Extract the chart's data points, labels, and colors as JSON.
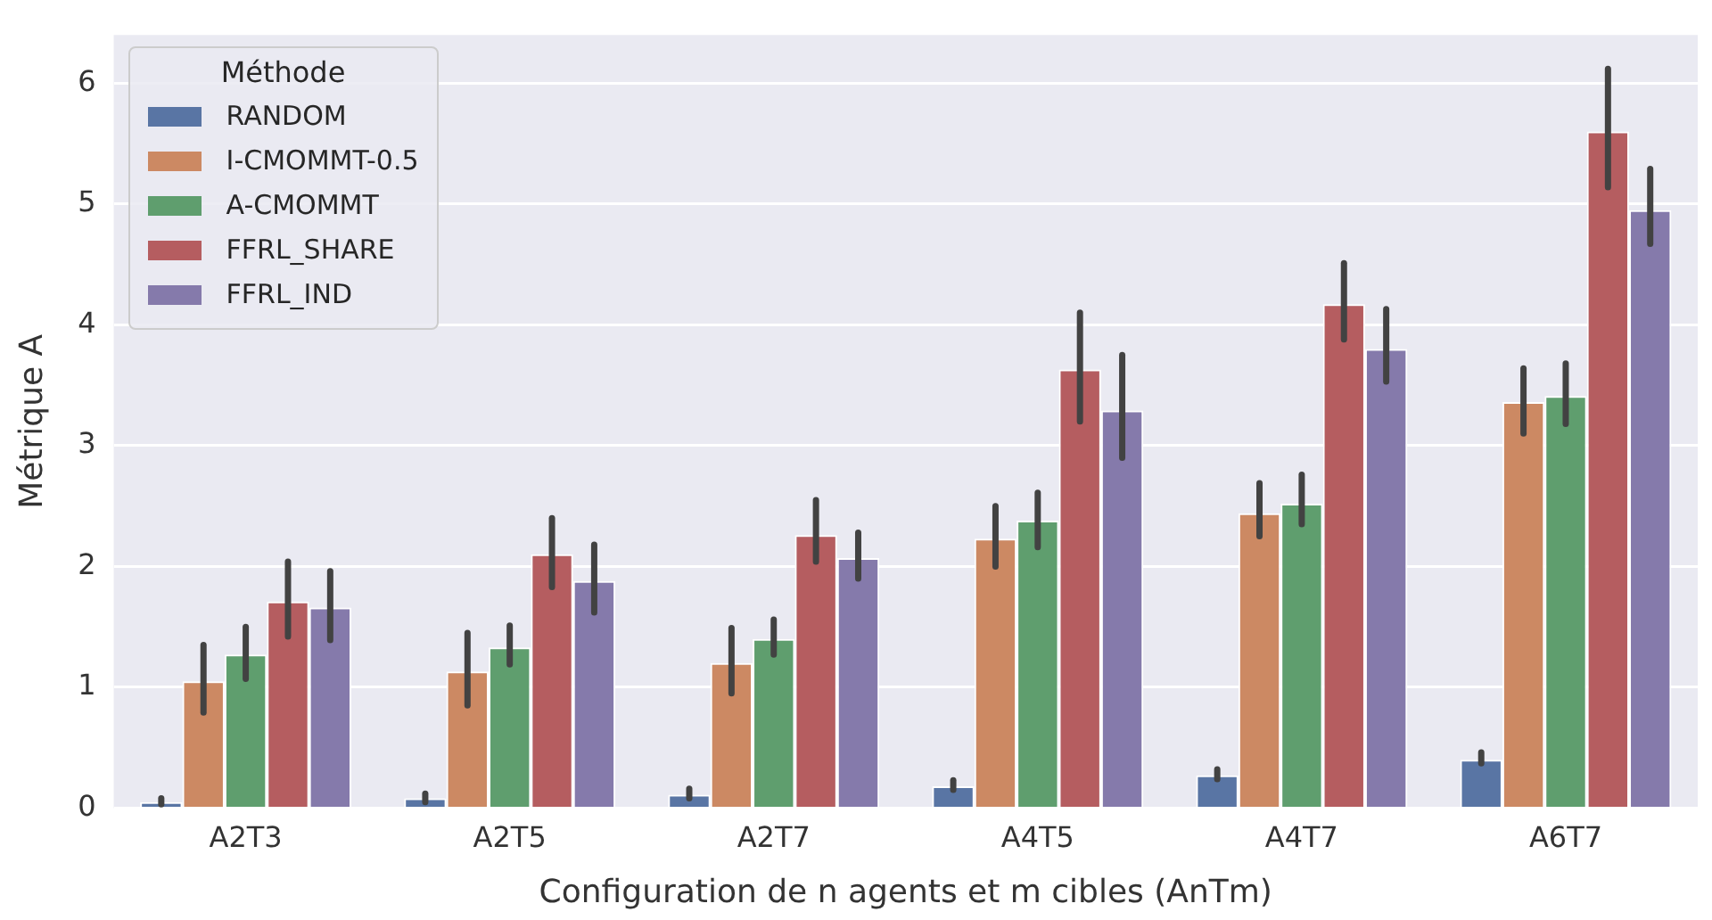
{
  "chart_data": {
    "type": "bar",
    "xlabel": "Configuration de n agents et m cibles (AnTm)",
    "ylabel": "Métrique A",
    "legend_title": "Méthode",
    "legend": "top left",
    "grid": "y",
    "categories": [
      "A2T3",
      "A2T5",
      "A2T7",
      "A4T5",
      "A4T7",
      "A6T7"
    ],
    "ylim": [
      0,
      6.4
    ],
    "yticks": [
      0,
      1,
      2,
      3,
      4,
      5,
      6
    ],
    "series": [
      {
        "name": "RANDOM",
        "color": "#5975a4",
        "values": [
          0.05,
          0.08,
          0.11,
          0.18,
          0.27,
          0.4
        ],
        "errors": [
          [
            0.03,
            0.08
          ],
          [
            0.05,
            0.12
          ],
          [
            0.08,
            0.16
          ],
          [
            0.15,
            0.23
          ],
          [
            0.24,
            0.32
          ],
          [
            0.37,
            0.46
          ]
        ]
      },
      {
        "name": "I-CMOMMT-0.5",
        "color": "#cc8963",
        "values": [
          1.05,
          1.13,
          1.2,
          2.23,
          2.44,
          3.36
        ],
        "errors": [
          [
            0.79,
            1.35
          ],
          [
            0.85,
            1.45
          ],
          [
            0.95,
            1.49
          ],
          [
            2.0,
            2.5
          ],
          [
            2.25,
            2.69
          ],
          [
            3.1,
            3.64
          ]
        ]
      },
      {
        "name": "A-CMOMMT",
        "color": "#5f9e6e",
        "values": [
          1.27,
          1.33,
          1.4,
          2.38,
          2.52,
          3.41
        ],
        "errors": [
          [
            1.07,
            1.5
          ],
          [
            1.19,
            1.51
          ],
          [
            1.27,
            1.56
          ],
          [
            2.16,
            2.61
          ],
          [
            2.35,
            2.76
          ],
          [
            3.18,
            3.68
          ]
        ]
      },
      {
        "name": "FFRL_SHARE",
        "color": "#b55d60",
        "values": [
          1.71,
          2.1,
          2.26,
          3.63,
          4.17,
          5.6
        ],
        "errors": [
          [
            1.42,
            2.04
          ],
          [
            1.83,
            2.4
          ],
          [
            2.04,
            2.55
          ],
          [
            3.2,
            4.1
          ],
          [
            3.88,
            4.51
          ],
          [
            5.14,
            6.12
          ]
        ]
      },
      {
        "name": "FFRL_IND",
        "color": "#857aab",
        "values": [
          1.66,
          1.88,
          2.07,
          3.29,
          3.8,
          4.95
        ],
        "errors": [
          [
            1.39,
            1.96
          ],
          [
            1.62,
            2.18
          ],
          [
            1.9,
            2.28
          ],
          [
            2.9,
            3.75
          ],
          [
            3.53,
            4.13
          ],
          [
            4.67,
            5.29
          ]
        ]
      }
    ]
  }
}
